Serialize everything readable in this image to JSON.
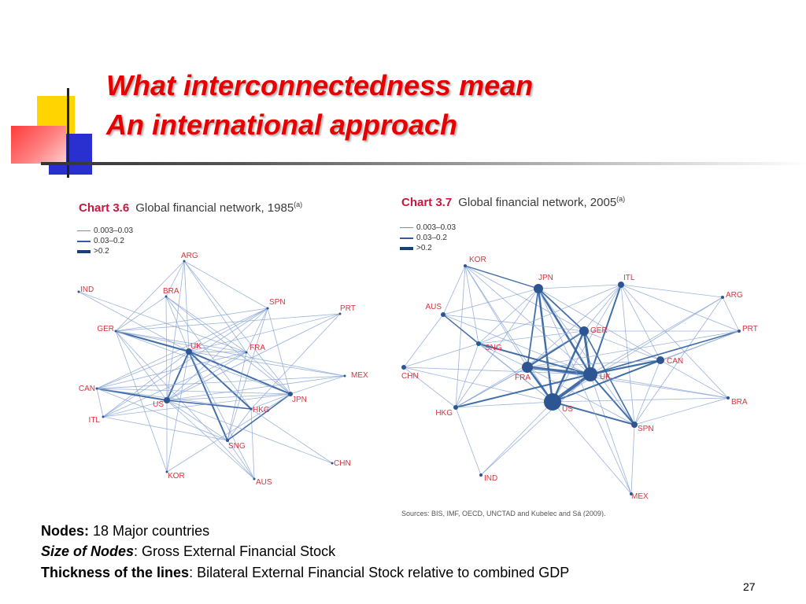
{
  "title": {
    "line1": "What interconnectedness mean",
    "line2": "An international approach"
  },
  "legend_items": [
    "0.003–0.03",
    "0.03–0.2",
    ">0.2"
  ],
  "charts": [
    {
      "number": "Chart 3.6",
      "heading": "Global financial network, 1985",
      "superscript": "(a)",
      "nodes": [
        "ARG",
        "BRA",
        "SPN",
        "IND",
        "PRT",
        "GER",
        "UK",
        "FRA",
        "MEX",
        "CAN",
        "US",
        "HKG",
        "JPN",
        "ITL",
        "SNG",
        "CHN",
        "KOR",
        "AUS"
      ]
    },
    {
      "number": "Chart 3.7",
      "heading": "Global financial network, 2005",
      "superscript": "(a)",
      "nodes": [
        "KOR",
        "JPN",
        "ITL",
        "ARG",
        "AUS",
        "GER",
        "PRT",
        "SNG",
        "CAN",
        "CHN",
        "FRA",
        "UK",
        "US",
        "BRA",
        "HKG",
        "SPN",
        "IND",
        "MEX"
      ],
      "sources": "Sources: BIS, IMF, OECD, UNCTAD and Kubelec and Sá (2009)."
    }
  ],
  "notes": {
    "nodes_label": "Nodes:",
    "nodes_text": " 18 Major countries",
    "size_label": "Size of Nodes",
    "size_text": ": Gross External Financial Stock",
    "thickness_label": "Thickness of the lines",
    "thickness_text": ": Bilateral External Financial Stock relative to combined GDP"
  },
  "page_number": "27",
  "colors": {
    "title": "#e60000",
    "chart_number": "#c8183e",
    "node_label": "#d8343f",
    "edge": "#2f5f9e",
    "node": "#2c5592"
  }
}
